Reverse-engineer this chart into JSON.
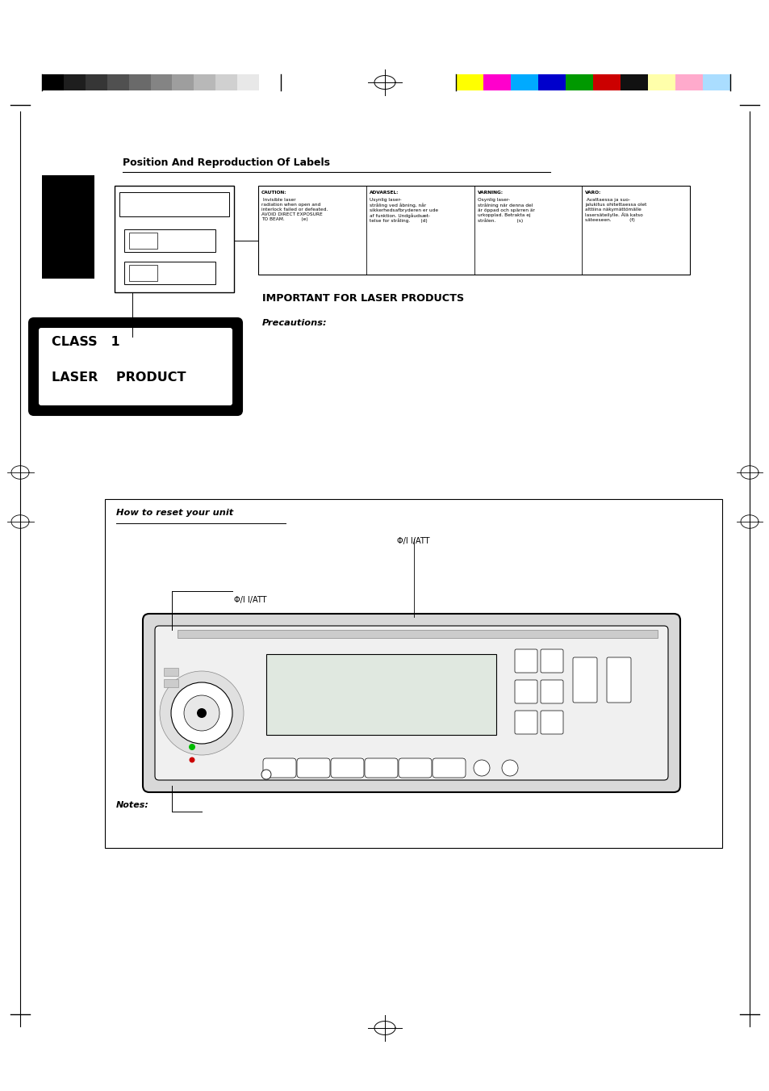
{
  "bg_color": "#ffffff",
  "page_width": 9.54,
  "page_height": 13.51,
  "grayscale_colors": [
    "#000000",
    "#1e1e1e",
    "#363636",
    "#505050",
    "#6a6a6a",
    "#848484",
    "#9e9e9e",
    "#b8b8b8",
    "#d0d0d0",
    "#e8e8e8",
    "#ffffff"
  ],
  "color_bars": [
    "#ffff00",
    "#ff00cc",
    "#00aaff",
    "#0000cc",
    "#009900",
    "#cc0000",
    "#111111",
    "#ffffaa",
    "#ffaacc",
    "#aaddff"
  ],
  "title1": "Position And Reproduction Of Labels",
  "laser_title": "IMPORTANT FOR LASER PRODUCTS",
  "precautions_label": "Precautions:",
  "caution_bold": "CAUTION:",
  "caution_body": " Invisible laser\nradiation when open and\ninterlock failed or defeated.\nAVOID DIRECT EXPOSURE\nTO BEAM.           (e)",
  "advarsel_bold": "ADVARSEL:",
  "advarsel_body": "Usynlig laser-\nstråling ved åbning, når\nsikkerhedsafbryderen er ude\naf funktion. Undgåudsæt-\ntelse for stråling.       (d)",
  "varning_bold": "VARNING:",
  "varning_body": "Osynlig laser-\nstrålning när denna del\när öppad och spärren är\nurkopplad. Betrakta ej\nstrålen.              (s)",
  "varo_bold": "VARO:",
  "varo_body": " Avattaessa ja suo-\njalukitus ohitettaessa olet\nalttiina näkymättömälle\nlasersäteilylle. Älä katso\nsäteeseen.            (f)",
  "reset_title": "How to reset your unit",
  "att_symbol": "Φ/I I/ATT",
  "notes_label": "Notes:"
}
